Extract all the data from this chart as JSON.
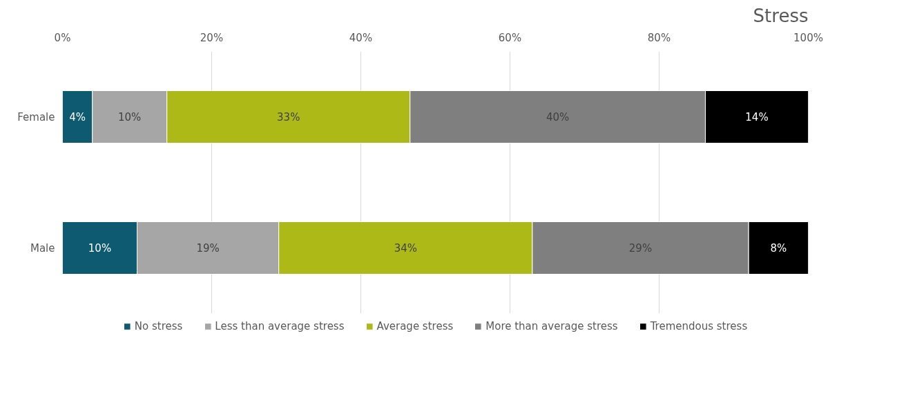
{
  "chart_data": {
    "type": "bar",
    "orientation": "horizontal",
    "stacked": true,
    "title": "Stress",
    "categories": [
      "Female",
      "Male"
    ],
    "series": [
      {
        "name": "No stress",
        "color": "#0e5a70",
        "values": [
          4,
          10
        ],
        "value_labels": [
          "4%",
          "10%"
        ]
      },
      {
        "name": "Less than average stress",
        "color": "#a6a6a6",
        "values": [
          10,
          19
        ],
        "value_labels": [
          "10%",
          "19%"
        ]
      },
      {
        "name": "Average stress",
        "color": "#adb917",
        "values": [
          32.6,
          34
        ],
        "value_labels": [
          "33%",
          "34%"
        ]
      },
      {
        "name": "More than average stress",
        "color": "#7f7f7f",
        "values": [
          39.6,
          29
        ],
        "value_labels": [
          "40%",
          "29%"
        ]
      },
      {
        "name": "Tremendous stress",
        "color": "#000000",
        "values": [
          13.8,
          8
        ],
        "value_labels": [
          "14%",
          "8%"
        ]
      }
    ],
    "xlim": [
      0,
      100
    ],
    "xticks": [
      {
        "value": 0,
        "label": "0%"
      },
      {
        "value": 20,
        "label": "20%"
      },
      {
        "value": 40,
        "label": "40%"
      },
      {
        "value": 60,
        "label": "60%"
      },
      {
        "value": 80,
        "label": "80%"
      },
      {
        "value": 100,
        "label": "100%"
      }
    ],
    "grid": "x",
    "legend": "bottom"
  }
}
